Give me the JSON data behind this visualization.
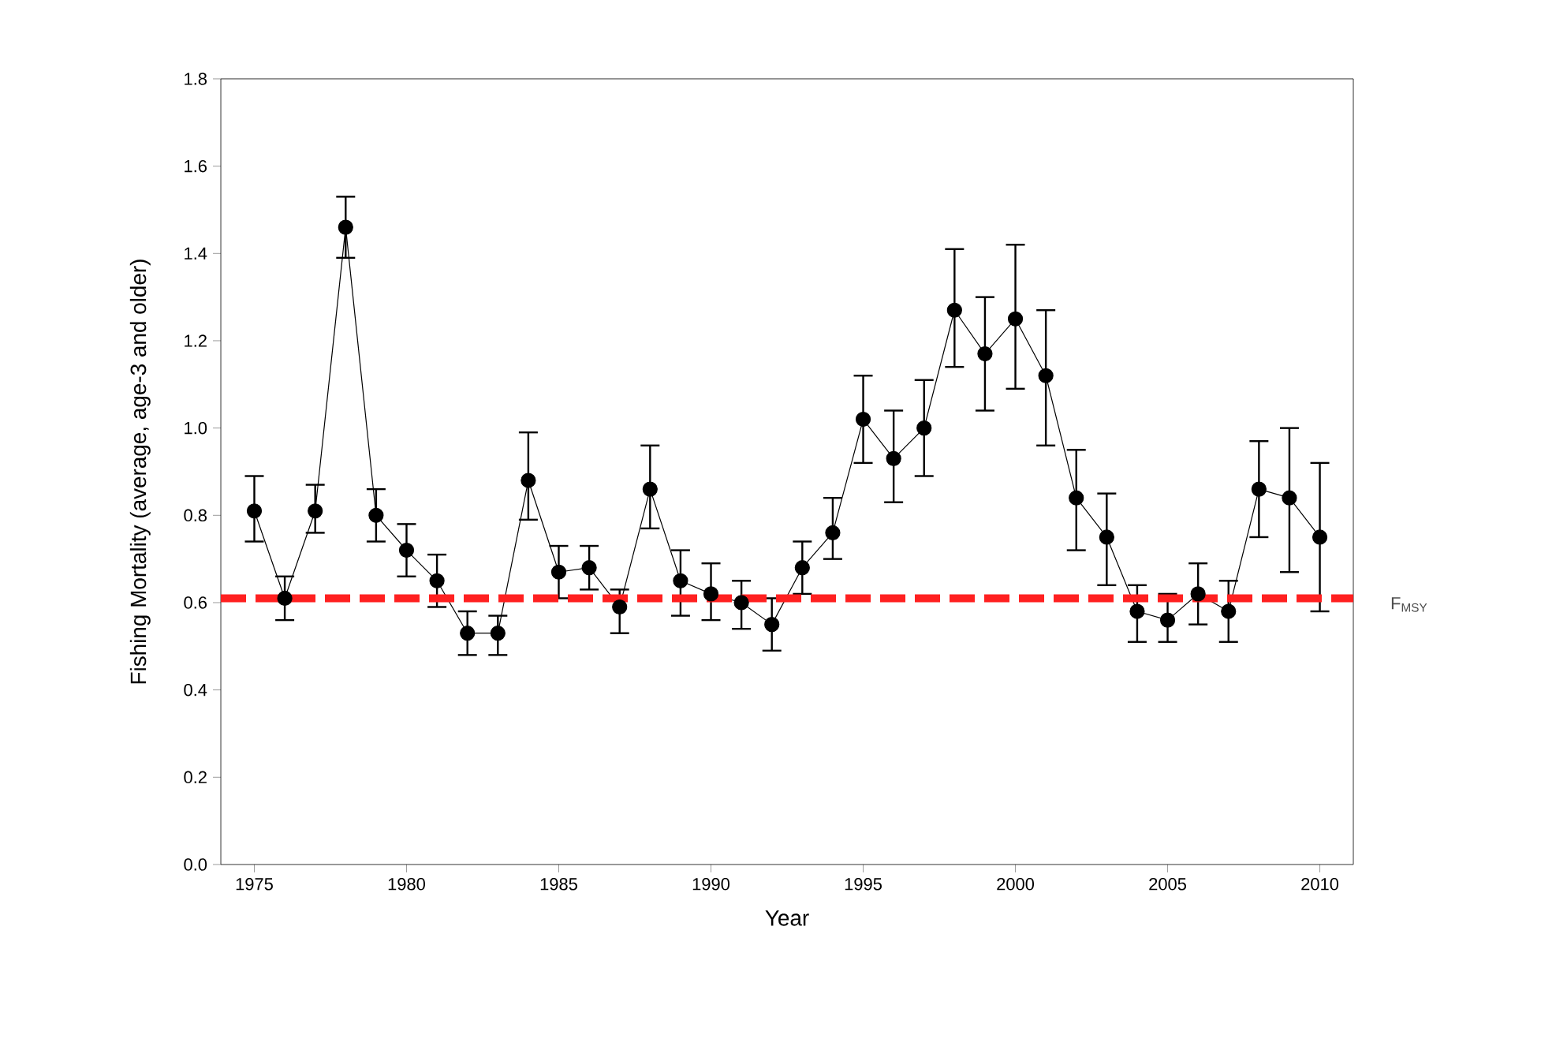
{
  "chart_data": {
    "type": "line",
    "xlabel": "Year",
    "ylabel": "Fishing Mortality (average, age-3 and older)",
    "x": [
      1975,
      1976,
      1977,
      1978,
      1979,
      1980,
      1981,
      1982,
      1983,
      1984,
      1985,
      1986,
      1987,
      1988,
      1989,
      1990,
      1991,
      1992,
      1993,
      1994,
      1995,
      1996,
      1997,
      1998,
      1999,
      2000,
      2001,
      2002,
      2003,
      2004,
      2005,
      2006,
      2007,
      2008,
      2009,
      2010
    ],
    "series": [
      {
        "color": "#000000",
        "values": [
          0.81,
          0.61,
          0.81,
          1.46,
          0.8,
          0.72,
          0.65,
          0.53,
          0.53,
          0.88,
          0.67,
          0.68,
          0.59,
          0.86,
          0.65,
          0.62,
          0.6,
          0.55,
          0.68,
          0.76,
          1.02,
          0.93,
          1.0,
          1.27,
          1.17,
          1.25,
          1.12,
          0.84,
          0.75,
          0.58,
          0.56,
          0.62,
          0.58,
          0.86,
          0.84,
          0.75
        ],
        "errors": [
          [
            0.74,
            0.89
          ],
          [
            0.56,
            0.66
          ],
          [
            0.76,
            0.87
          ],
          [
            1.39,
            1.53
          ],
          [
            0.74,
            0.86
          ],
          [
            0.66,
            0.78
          ],
          [
            0.59,
            0.71
          ],
          [
            0.48,
            0.58
          ],
          [
            0.48,
            0.57
          ],
          [
            0.79,
            0.99
          ],
          [
            0.61,
            0.73
          ],
          [
            0.63,
            0.73
          ],
          [
            0.53,
            0.63
          ],
          [
            0.77,
            0.96
          ],
          [
            0.57,
            0.72
          ],
          [
            0.56,
            0.69
          ],
          [
            0.54,
            0.65
          ],
          [
            0.49,
            0.61
          ],
          [
            0.62,
            0.74
          ],
          [
            0.7,
            0.84
          ],
          [
            0.92,
            1.12
          ],
          [
            0.83,
            1.04
          ],
          [
            0.89,
            1.11
          ],
          [
            1.14,
            1.41
          ],
          [
            1.04,
            1.3
          ],
          [
            1.09,
            1.42
          ],
          [
            0.96,
            1.27
          ],
          [
            0.72,
            0.95
          ],
          [
            0.64,
            0.85
          ],
          [
            0.51,
            0.64
          ],
          [
            0.51,
            0.62
          ],
          [
            0.55,
            0.69
          ],
          [
            0.51,
            0.65
          ],
          [
            0.75,
            0.97
          ],
          [
            0.67,
            1.0
          ],
          [
            0.58,
            0.92
          ]
        ]
      }
    ],
    "xlim": [
      1973.9,
      2011.1
    ],
    "xticks": [
      1975,
      1980,
      1985,
      1990,
      1995,
      2000,
      2005,
      2010
    ],
    "ylim": [
      0,
      1.8
    ],
    "yticks": [
      {
        "value": 0,
        "label": "0.0"
      },
      {
        "value": 0.2,
        "label": "0.2"
      },
      {
        "value": 0.4,
        "label": "0.4"
      },
      {
        "value": 0.6,
        "label": "0.6"
      },
      {
        "value": 0.8,
        "label": "0.8"
      },
      {
        "value": 1.0,
        "label": "1.0"
      },
      {
        "value": 1.2,
        "label": "1.2"
      },
      {
        "value": 1.4,
        "label": "1.4"
      },
      {
        "value": 1.6,
        "label": "1.6"
      },
      {
        "value": 1.8,
        "label": "1.8"
      }
    ],
    "ref_lines": [
      {
        "axis": "y",
        "value": 0.61,
        "label": "F$_{MSY}$",
        "color": "#ff2020",
        "line_style": "dashed"
      }
    ],
    "marker": "circle",
    "line_style": "solid"
  }
}
